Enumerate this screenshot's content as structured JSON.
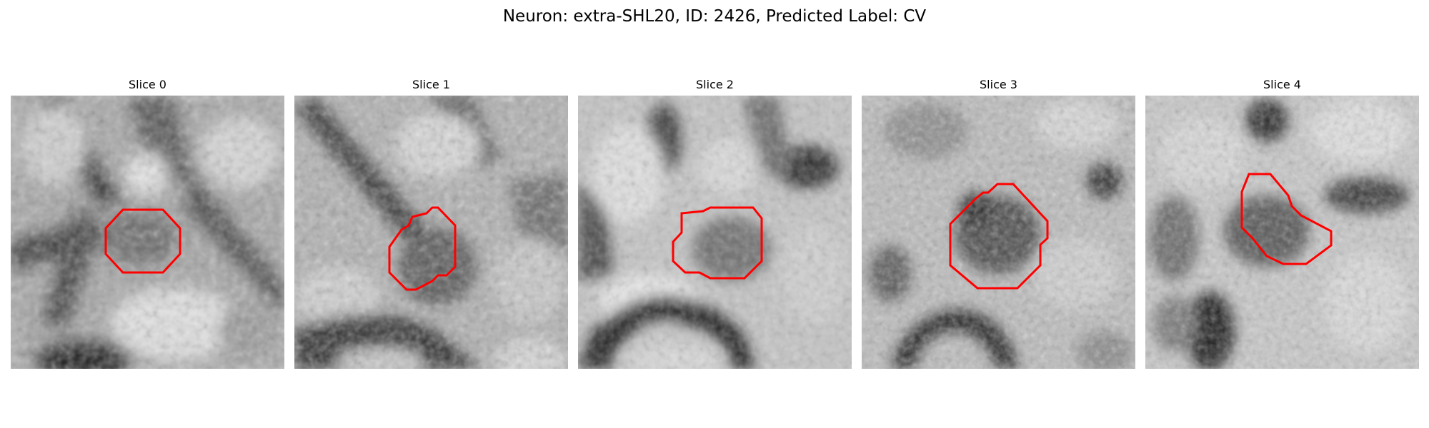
{
  "figure": {
    "title": "Neuron: extra-SHL20, ID: 2426, Predicted Label: CV",
    "contour_color": "#ff0000"
  },
  "slices": [
    {
      "title": "Slice 0"
    },
    {
      "title": "Slice 1"
    },
    {
      "title": "Slice 2"
    },
    {
      "title": "Slice 3"
    },
    {
      "title": "Slice 4"
    }
  ]
}
